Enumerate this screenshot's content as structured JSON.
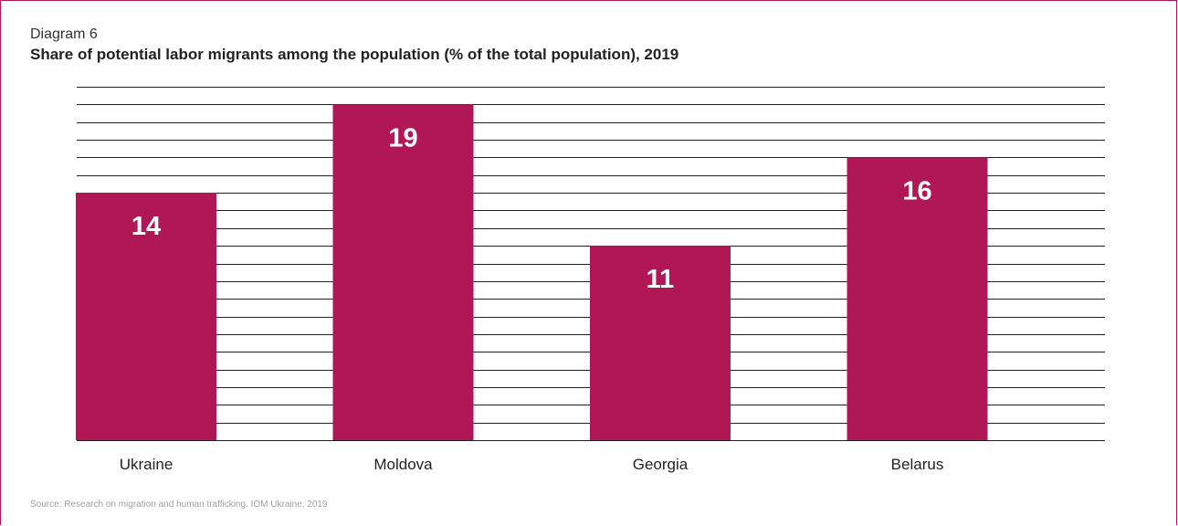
{
  "header": {
    "diagram_label": "Diagram 6",
    "title": "Share of potential labor migrants among the population (% of the total population), 2019"
  },
  "source": "Source: Research on migration and human trafficking. IOM Ukraine, 2019",
  "colors": {
    "bar": "#b01754",
    "frame": "#b01754",
    "grid": "#222222",
    "value_label": "#ffffff"
  },
  "chart_data": {
    "type": "bar",
    "title": "Share of potential labor migrants among the population (% of the total population), 2019",
    "categories": [
      "Ukraine",
      "Moldova",
      "Georgia",
      "Belarus"
    ],
    "values": [
      14,
      19,
      11,
      16
    ],
    "ylim": [
      0,
      20
    ],
    "grid": true,
    "data_labels": "inside-top"
  }
}
